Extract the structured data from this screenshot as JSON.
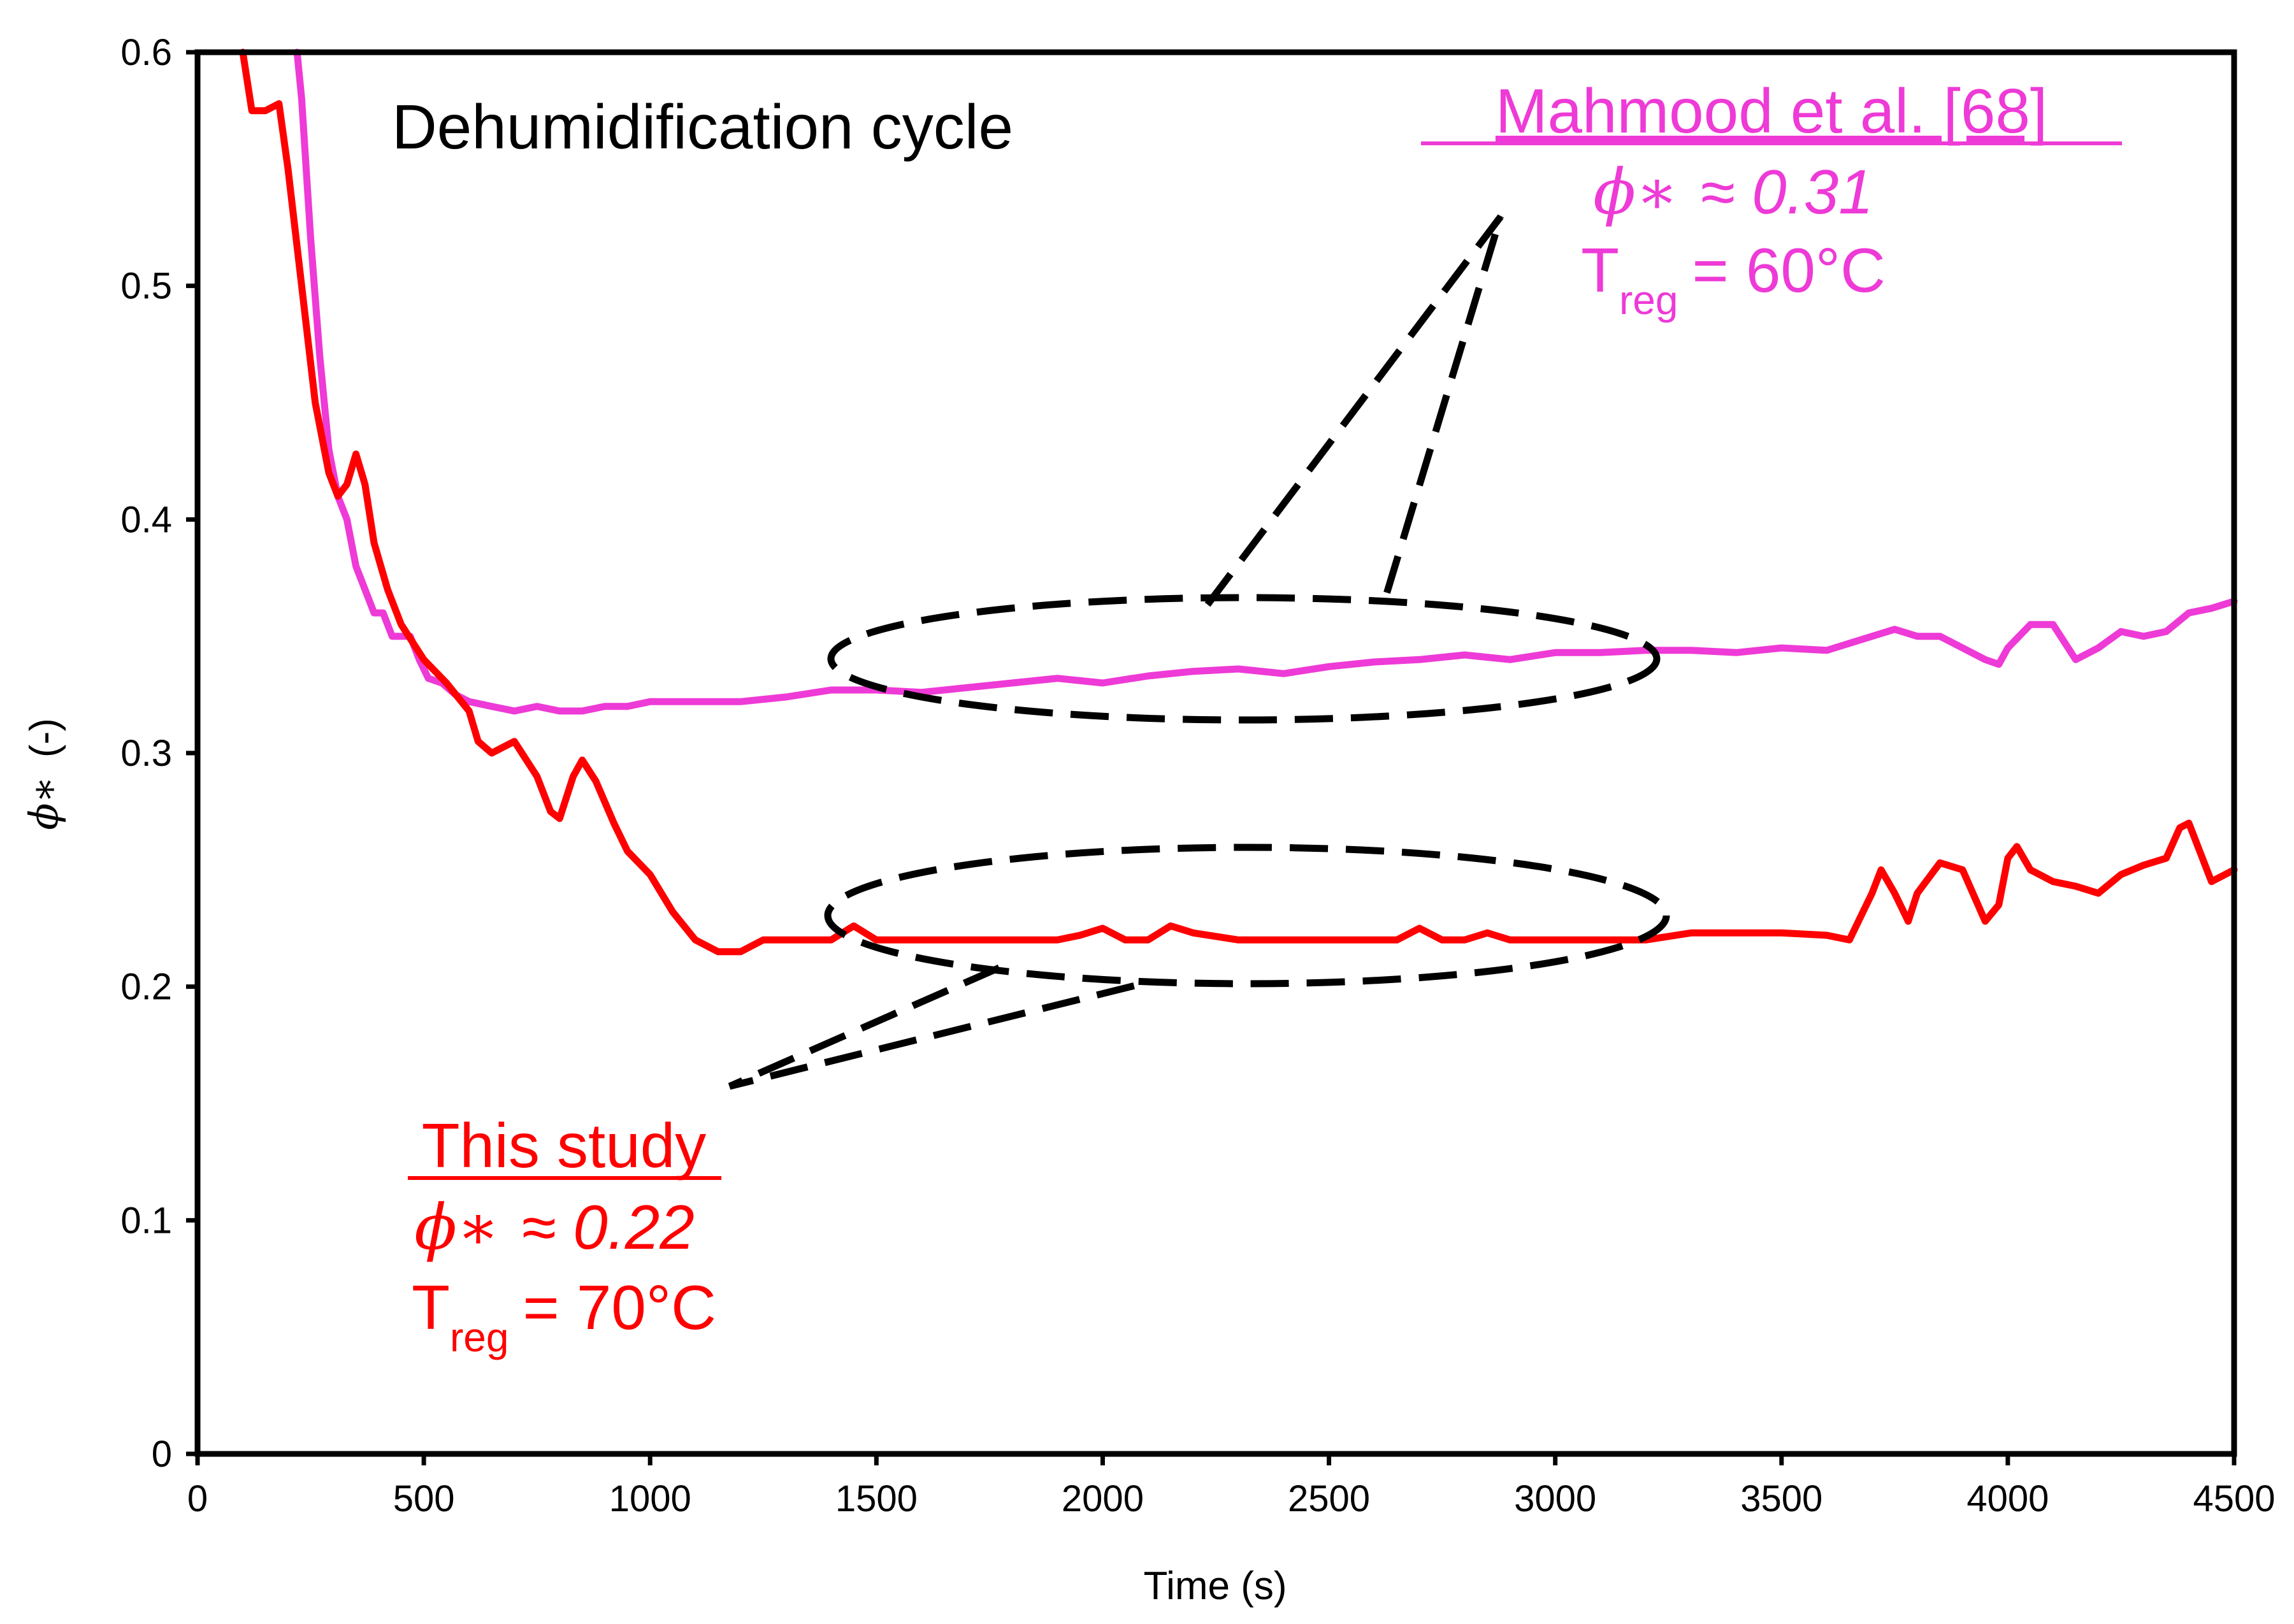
{
  "chart_data": {
    "type": "line",
    "title": "Dehumidification cycle",
    "xlabel": "Time (s)",
    "ylabel_symbol": "ϕ∗",
    "ylabel_unit": "(-)",
    "xlim": [
      0,
      4500
    ],
    "ylim": [
      0,
      0.6
    ],
    "xticks": [
      "0",
      "500",
      "1000",
      "1500",
      "2000",
      "2500",
      "3000",
      "3500",
      "4000",
      "4500"
    ],
    "yticks": [
      "0",
      "0.1",
      "0.2",
      "0.3",
      "0.4",
      "0.5",
      "0.6"
    ],
    "grid": false,
    "series": [
      {
        "name": "Mahmood et al. [68]",
        "color": "#ee3ad6",
        "x": [
          220,
          230,
          250,
          270,
          290,
          310,
          330,
          350,
          370,
          390,
          410,
          430,
          450,
          470,
          490,
          510,
          540,
          570,
          600,
          650,
          700,
          750,
          800,
          850,
          900,
          950,
          1000,
          1100,
          1200,
          1300,
          1400,
          1500,
          1600,
          1700,
          1800,
          1900,
          2000,
          2100,
          2200,
          2300,
          2400,
          2500,
          2600,
          2700,
          2800,
          2900,
          3000,
          3100,
          3200,
          3300,
          3400,
          3500,
          3600,
          3650,
          3700,
          3750,
          3800,
          3850,
          3900,
          3950,
          3980,
          4000,
          4050,
          4100,
          4150,
          4200,
          4250,
          4300,
          4350,
          4400,
          4450,
          4500
        ],
        "values": [
          0.6,
          0.58,
          0.52,
          0.47,
          0.43,
          0.41,
          0.4,
          0.38,
          0.37,
          0.36,
          0.36,
          0.35,
          0.35,
          0.35,
          0.34,
          0.332,
          0.33,
          0.325,
          0.322,
          0.32,
          0.318,
          0.32,
          0.318,
          0.318,
          0.32,
          0.32,
          0.322,
          0.322,
          0.322,
          0.324,
          0.327,
          0.327,
          0.326,
          0.328,
          0.33,
          0.332,
          0.33,
          0.333,
          0.335,
          0.336,
          0.334,
          0.337,
          0.339,
          0.34,
          0.342,
          0.34,
          0.343,
          0.343,
          0.344,
          0.344,
          0.343,
          0.345,
          0.344,
          0.347,
          0.35,
          0.353,
          0.35,
          0.35,
          0.345,
          0.34,
          0.338,
          0.345,
          0.355,
          0.355,
          0.34,
          0.345,
          0.352,
          0.35,
          0.352,
          0.36,
          0.362,
          0.365
        ]
      },
      {
        "name": "This study",
        "color": "#ff0000",
        "x": [
          100,
          120,
          150,
          180,
          200,
          230,
          260,
          290,
          310,
          330,
          350,
          370,
          390,
          420,
          450,
          500,
          550,
          600,
          620,
          650,
          700,
          750,
          780,
          800,
          830,
          850,
          880,
          920,
          950,
          1000,
          1050,
          1100,
          1150,
          1200,
          1250,
          1300,
          1400,
          1450,
          1500,
          1600,
          1700,
          1800,
          1900,
          1950,
          2000,
          2050,
          2100,
          2150,
          2200,
          2300,
          2400,
          2500,
          2600,
          2650,
          2700,
          2750,
          2800,
          2850,
          2900,
          3000,
          3100,
          3200,
          3300,
          3400,
          3500,
          3600,
          3650,
          3700,
          3720,
          3750,
          3780,
          3800,
          3850,
          3900,
          3950,
          3980,
          4000,
          4020,
          4050,
          4100,
          4150,
          4200,
          4250,
          4300,
          4350,
          4380,
          4400,
          4450,
          4500
        ],
        "values": [
          0.6,
          0.575,
          0.575,
          0.578,
          0.55,
          0.5,
          0.45,
          0.42,
          0.41,
          0.415,
          0.428,
          0.415,
          0.39,
          0.37,
          0.355,
          0.34,
          0.33,
          0.318,
          0.305,
          0.3,
          0.305,
          0.29,
          0.275,
          0.272,
          0.29,
          0.297,
          0.288,
          0.27,
          0.258,
          0.248,
          0.232,
          0.22,
          0.215,
          0.215,
          0.22,
          0.22,
          0.22,
          0.226,
          0.22,
          0.22,
          0.22,
          0.22,
          0.22,
          0.222,
          0.225,
          0.22,
          0.22,
          0.226,
          0.223,
          0.22,
          0.22,
          0.22,
          0.22,
          0.22,
          0.225,
          0.22,
          0.22,
          0.223,
          0.22,
          0.22,
          0.22,
          0.22,
          0.223,
          0.223,
          0.223,
          0.222,
          0.22,
          0.24,
          0.25,
          0.24,
          0.228,
          0.24,
          0.253,
          0.25,
          0.228,
          0.235,
          0.255,
          0.26,
          0.25,
          0.245,
          0.243,
          0.24,
          0.248,
          0.252,
          0.255,
          0.268,
          0.27,
          0.245,
          0.25
        ]
      }
    ],
    "annotations": {
      "mahmood": {
        "title": "Mahmood et al. [68]",
        "symbol": "ϕ∗",
        "value": "≈ 0.31",
        "t_label": "T",
        "t_sub": "reg",
        "t_value": "= 60°C",
        "color": "#ee3ad6"
      },
      "study": {
        "title": "This study",
        "symbol": "ϕ∗",
        "value": "≈ 0.22",
        "t_label": "T",
        "t_sub": "reg",
        "t_value": "= 70°C",
        "color": "#ff0000"
      }
    }
  }
}
